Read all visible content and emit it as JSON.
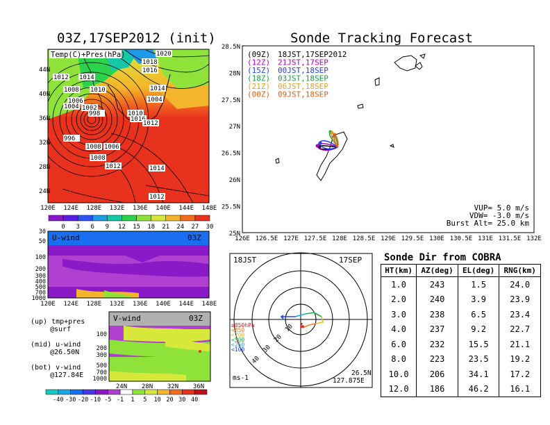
{
  "left_top": {
    "title": "03Z,17SEP2012 (init)",
    "label": "Temp(C)+Pres(hPa)",
    "lat_ticks": [
      "44N",
      "40N",
      "36N",
      "32N",
      "28N",
      "24N"
    ],
    "lon_ticks": [
      "120E",
      "124E",
      "128E",
      "132E",
      "136E",
      "140E",
      "144E",
      "148E"
    ],
    "isobars": [
      "1020",
      "1018",
      "1016",
      "1012",
      "1014",
      "1008",
      "1010",
      "1006",
      "1004",
      "1002",
      "998",
      "996",
      "1008",
      "1010",
      "1016",
      "1012",
      "1014",
      "1004",
      "1006",
      "1008",
      "1012",
      "1014",
      "1012"
    ],
    "colorbar_ticks": [
      "0",
      "3",
      "6",
      "9",
      "12",
      "15",
      "18",
      "21",
      "24",
      "27",
      "30"
    ],
    "colorbar_colors": [
      "#8a1ac8",
      "#5b1ee0",
      "#2a55f0",
      "#1e9be6",
      "#16c8a8",
      "#2bd24b",
      "#8ee23a",
      "#d8e83a",
      "#f3b52b",
      "#f26b1f",
      "#e8321e"
    ]
  },
  "u_wind": {
    "label": "U-wind",
    "time": "03Z",
    "p_ticks": [
      "30",
      "50",
      "100",
      "200",
      "300",
      "400",
      "500",
      "700",
      "1000"
    ],
    "lon_ticks": [
      "120E",
      "124E",
      "128E",
      "132E",
      "136E",
      "140E",
      "144E",
      "148E"
    ]
  },
  "v_wind": {
    "label": "V-wind",
    "time": "03Z",
    "p_ticks": [
      "100",
      "200",
      "300",
      "500",
      "700",
      "1000"
    ],
    "lat_ticks": [
      "24N",
      "28N",
      "32N",
      "36N"
    ]
  },
  "notes": [
    {
      "a": "(up) tmp+pres",
      "b": "@surf"
    },
    {
      "a": "(mid) u-wind",
      "b": "@26.50N"
    },
    {
      "a": "(bot) v-wind",
      "b": "@127.84E"
    }
  ],
  "wind_colorbar": {
    "ticks": [
      "-40",
      "-30",
      "-20",
      "-10",
      "-5",
      "-1",
      "1",
      "5",
      "10",
      "20",
      "30",
      "40"
    ],
    "colors": [
      "#16c8c0",
      "#16a8e0",
      "#1a6ef0",
      "#4a3ae8",
      "#8a1ac8",
      "#b040d0",
      "#ffffff",
      "#8ee23a",
      "#d8e83a",
      "#f3b52b",
      "#f26b1f",
      "#e8321e",
      "#c0101a"
    ]
  },
  "tracking": {
    "title": "Sonde Tracking Forecast",
    "y_ticks": [
      "28.5N",
      "28N",
      "27.5N",
      "27N",
      "26.5N",
      "26N",
      "25.5N",
      "25N"
    ],
    "x_ticks": [
      "126E",
      "126.5E",
      "127E",
      "127.5E",
      "128E",
      "128.5E",
      "129E",
      "129.5E",
      "130E",
      "130.5E",
      "131E",
      "131.5E",
      "132E"
    ],
    "legend": [
      {
        "code": "(09Z)",
        "time": "18JST,17SEP2012",
        "color": "#000000"
      },
      {
        "code": "(12Z)",
        "time": "21JST,17SEP",
        "color": "#b000c0"
      },
      {
        "code": "(15Z)",
        "time": "00JST,18SEP",
        "color": "#2040f0"
      },
      {
        "code": "(18Z)",
        "time": "03JST,18SEP",
        "color": "#10a040"
      },
      {
        "code": "(21Z)",
        "time": "06JST,18SEP",
        "color": "#e8a020"
      },
      {
        "code": "(00Z)",
        "time": "09JST,18SEP",
        "color": "#e06010"
      }
    ],
    "params": [
      "VUP= 5.0 m/s",
      "VDW= -3.0 m/s",
      "Burst Alt= 25.0 km"
    ]
  },
  "polar": {
    "time": "18JST",
    "date": "17SEP",
    "ring_labels": [
      "10",
      "20",
      "30",
      "40"
    ],
    "legend": [
      {
        "text": "≥850hPa",
        "color": "#e02020"
      },
      {
        "text": "<850",
        "color": "#f08020"
      },
      {
        "text": "<700",
        "color": "#e0c020"
      },
      {
        "text": "<500",
        "color": "#20b040"
      },
      {
        "text": "<250",
        "color": "#20a0e0"
      },
      {
        "text": "<100",
        "color": "#2040f0"
      }
    ],
    "units": "ms-1",
    "location_lat": "26.5N",
    "location_lon": "127.875E"
  },
  "table": {
    "title": "Sonde Dir from COBRA",
    "headers": [
      "HT(km)",
      "AZ(deg)",
      "EL(deg)",
      "RNG(km)"
    ],
    "rows": [
      [
        "1.0",
        "243",
        "1.5",
        "24.0"
      ],
      [
        "2.0",
        "240",
        "3.9",
        "23.9"
      ],
      [
        "3.0",
        "238",
        "6.5",
        "23.4"
      ],
      [
        "4.0",
        "237",
        "9.2",
        "22.7"
      ],
      [
        "6.0",
        "232",
        "15.5",
        "21.1"
      ],
      [
        "8.0",
        "223",
        "23.5",
        "19.2"
      ],
      [
        "10.0",
        "206",
        "34.1",
        "17.2"
      ],
      [
        "12.0",
        "186",
        "46.2",
        "16.1"
      ]
    ]
  }
}
